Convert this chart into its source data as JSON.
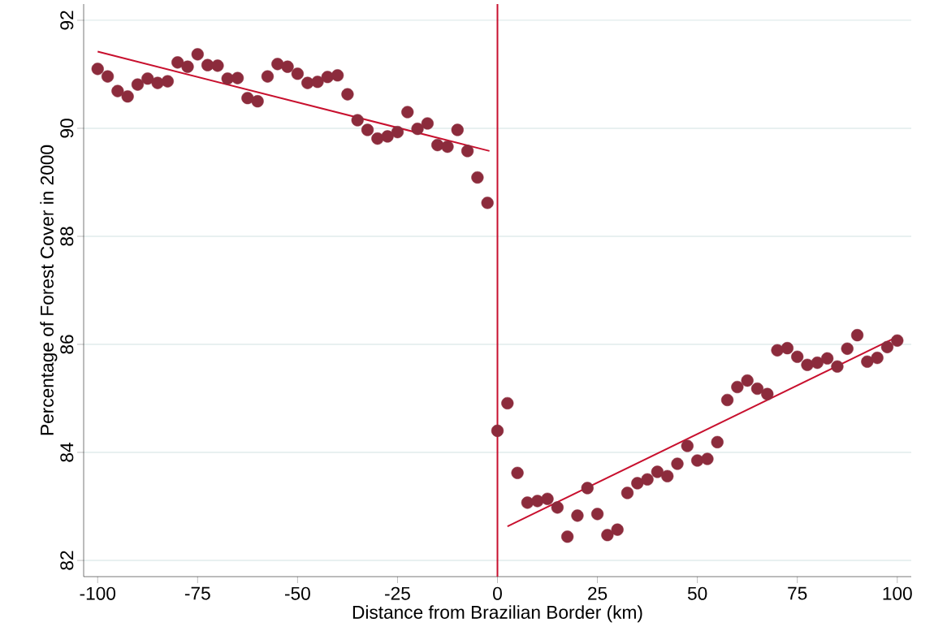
{
  "chart_data": {
    "type": "scatter",
    "xlabel": "Distance from Brazilian Border (km)",
    "ylabel": "Percentage of Forest Cover in 2000",
    "xlim": [
      -103.5,
      103.5
    ],
    "ylim": [
      81.7,
      92.3
    ],
    "xticks": [
      -100,
      -75,
      -50,
      -25,
      0,
      25,
      50,
      75,
      100
    ],
    "yticks": [
      82,
      84,
      86,
      88,
      90,
      92
    ],
    "grid": "y",
    "marker": "circle",
    "series": [
      {
        "color": "#8c2b3c",
        "x": [
          -100,
          -97.5,
          -95,
          -92.5,
          -90,
          -87.5,
          -85,
          -82.5,
          -80,
          -77.5,
          -75,
          -72.5,
          -70,
          -67.5,
          -65,
          -62.5,
          -60,
          -57.5,
          -55,
          -52.5,
          -50,
          -47.5,
          -45,
          -42.5,
          -40,
          -37.5,
          -35,
          -32.5,
          -30,
          -27.5,
          -25,
          -22.5,
          -20,
          -17.5,
          -15,
          -12.5,
          -10,
          -7.5,
          -5,
          -2.5
        ],
        "values": [
          91.1,
          90.96,
          90.69,
          90.59,
          90.81,
          90.92,
          90.84,
          90.87,
          91.22,
          91.14,
          91.37,
          91.17,
          91.16,
          90.92,
          90.93,
          90.56,
          90.5,
          90.96,
          91.19,
          91.14,
          91.01,
          90.84,
          90.86,
          90.95,
          90.98,
          90.63,
          90.15,
          89.97,
          89.81,
          89.85,
          89.93,
          90.3,
          89.99,
          90.09,
          89.69,
          89.66,
          89.97,
          89.58,
          89.09,
          88.62
        ]
      },
      {
        "color": "#8c2b3c",
        "x": [
          0,
          2.5,
          5,
          7.5,
          10,
          12.5,
          15,
          17.5,
          20,
          22.5,
          25,
          27.5,
          30,
          32.5,
          35,
          37.5,
          40,
          42.5,
          45,
          47.5,
          50,
          52.5,
          55,
          57.5,
          60,
          62.5,
          65,
          67.5,
          70,
          72.5,
          75,
          77.5,
          80,
          82.5,
          85,
          87.5,
          90,
          92.5,
          95,
          97.5,
          100
        ],
        "values": [
          84.4,
          84.91,
          83.62,
          83.07,
          83.1,
          83.14,
          82.98,
          82.44,
          82.83,
          83.34,
          82.86,
          82.47,
          82.57,
          83.25,
          83.43,
          83.5,
          83.64,
          83.56,
          83.79,
          84.12,
          83.85,
          83.88,
          84.19,
          84.97,
          85.21,
          85.33,
          85.18,
          85.08,
          85.89,
          85.93,
          85.77,
          85.62,
          85.66,
          85.74,
          85.59,
          85.92,
          86.17,
          85.68,
          85.75,
          85.95,
          86.07
        ]
      },
      {
        "type": "line",
        "marker": "none",
        "color": "#c8102e",
        "x": [
          -100,
          -2
        ],
        "values": [
          91.42,
          89.58
        ]
      },
      {
        "type": "line",
        "marker": "none",
        "color": "#c8102e",
        "x": [
          2.5,
          100
        ],
        "values": [
          82.63,
          86.14
        ]
      }
    ],
    "ref_lines": [
      {
        "axis": "x",
        "value": 0,
        "color": "#c8102e"
      }
    ]
  }
}
